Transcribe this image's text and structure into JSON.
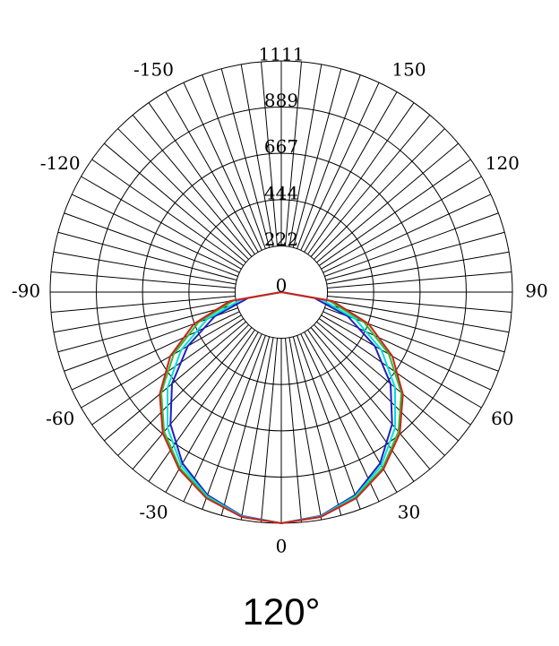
{
  "chart_data": {
    "type": "polar",
    "title": "120°",
    "rlim": [
      0,
      1111
    ],
    "rticks": [
      0,
      222,
      444,
      667,
      889,
      1111
    ],
    "thetaticks": [
      0,
      30,
      60,
      90,
      120,
      150,
      -150,
      -120,
      -90,
      -60,
      -30
    ],
    "grid": true,
    "x": [
      -90,
      -80,
      -70,
      -60,
      -50,
      -40,
      -30,
      -20,
      -10,
      0,
      10,
      20,
      30,
      40,
      50,
      60,
      70,
      80,
      90
    ],
    "series": [
      {
        "color": "#2020c0",
        "values": [
          0,
          161,
          340,
          519,
          686,
          829,
          950,
          1038,
          1092,
          1111,
          1092,
          1038,
          950,
          829,
          686,
          519,
          340,
          161,
          0
        ]
      },
      {
        "color": "#00e0e0",
        "values": [
          0,
          193,
          380,
          556,
          714,
          851,
          962,
          1044,
          1094,
          1111,
          1094,
          1044,
          962,
          851,
          714,
          556,
          380,
          193,
          0
        ]
      },
      {
        "color": "#30c030",
        "values": [
          0,
          231,
          424,
          597,
          753,
          876,
          975,
          1050,
          1097,
          1111,
          1097,
          1050,
          975,
          876,
          753,
          597,
          424,
          231,
          0
        ]
      },
      {
        "color": "#d02020",
        "values": [
          0,
          251,
          447,
          616,
          763,
          886,
          983,
          1054,
          1097,
          1111,
          1097,
          1054,
          983,
          886,
          763,
          616,
          447,
          251,
          0
        ]
      }
    ]
  }
}
